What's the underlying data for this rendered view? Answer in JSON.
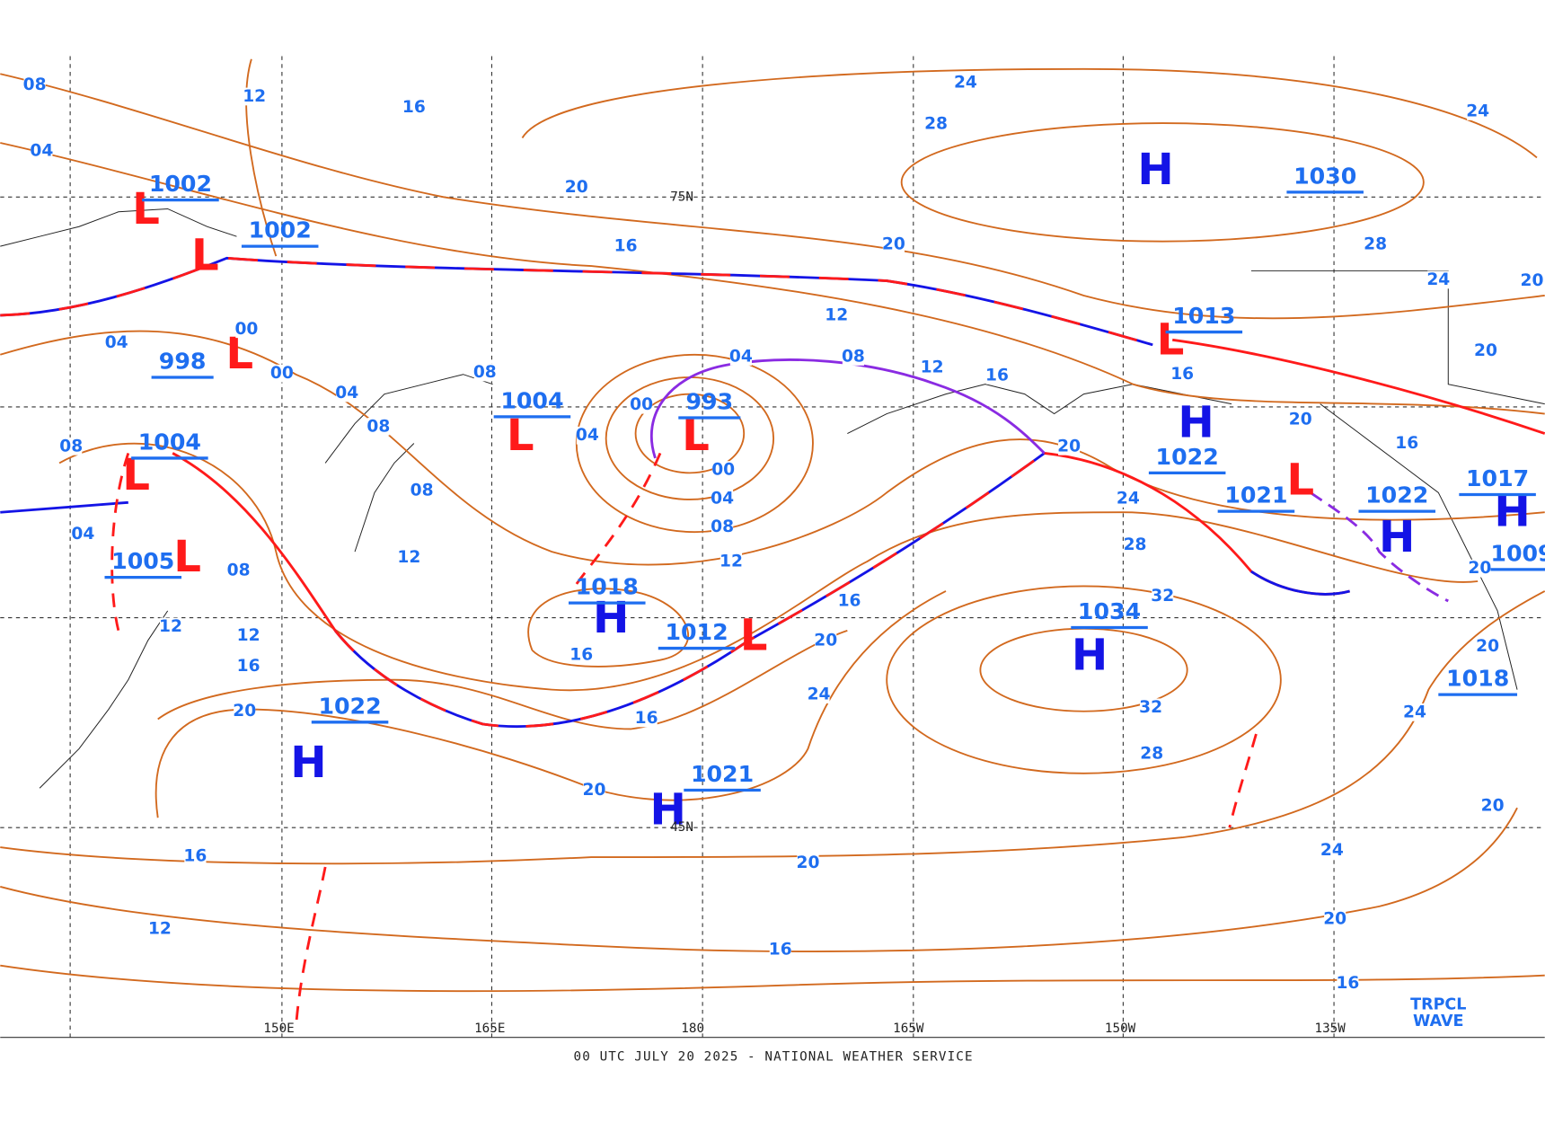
{
  "centers": [
    {
      "type": "L",
      "value": "1002"
    },
    {
      "type": "L",
      "value": "1002"
    },
    {
      "type": "L",
      "value": "998"
    },
    {
      "type": "L",
      "value": "1004"
    },
    {
      "type": "L",
      "value": "1005"
    },
    {
      "type": "L",
      "value": "1004"
    },
    {
      "type": "L",
      "value": "993"
    },
    {
      "type": "H",
      "value": "1018"
    },
    {
      "type": "L",
      "value": "1012"
    },
    {
      "type": "H",
      "value": "1022"
    },
    {
      "type": "H",
      "value": "1021"
    },
    {
      "type": "H",
      "value": "1030"
    },
    {
      "type": "L",
      "value": "1013"
    },
    {
      "type": "H",
      "value": "1022"
    },
    {
      "type": "L",
      "value": "1021"
    },
    {
      "type": "H",
      "value": "1022"
    },
    {
      "type": "H",
      "value": "1017"
    },
    {
      "type": "H",
      "value": "1034"
    }
  ],
  "extra_values": [
    "1018",
    "1009"
  ],
  "isobar_labels": [
    "08",
    "12",
    "16",
    "24",
    "28",
    "24",
    "04",
    "20",
    "16",
    "20",
    "28",
    "24",
    "20",
    "00",
    "04",
    "00",
    "04",
    "08",
    "04",
    "08",
    "12",
    "12",
    "16",
    "16",
    "20",
    "08",
    "08",
    "00",
    "04",
    "00",
    "04",
    "08",
    "20",
    "20",
    "16",
    "08",
    "24",
    "04",
    "12",
    "12",
    "08",
    "28",
    "20",
    "12",
    "12",
    "16",
    "32",
    "20",
    "16",
    "16",
    "20",
    "24",
    "20",
    "16",
    "32",
    "24",
    "28",
    "20",
    "20",
    "24",
    "16",
    "20",
    "20",
    "12",
    "16",
    "16"
  ],
  "longitudes": [
    "150E",
    "165E",
    "180",
    "165W",
    "150W",
    "135W"
  ],
  "latitudes": [
    "75N",
    "45N"
  ],
  "footer": "00 UTC JULY 20 2025 - NATIONAL WEATHER SERVICE",
  "tropical_wave": [
    "TRPCL",
    "WAVE"
  ]
}
